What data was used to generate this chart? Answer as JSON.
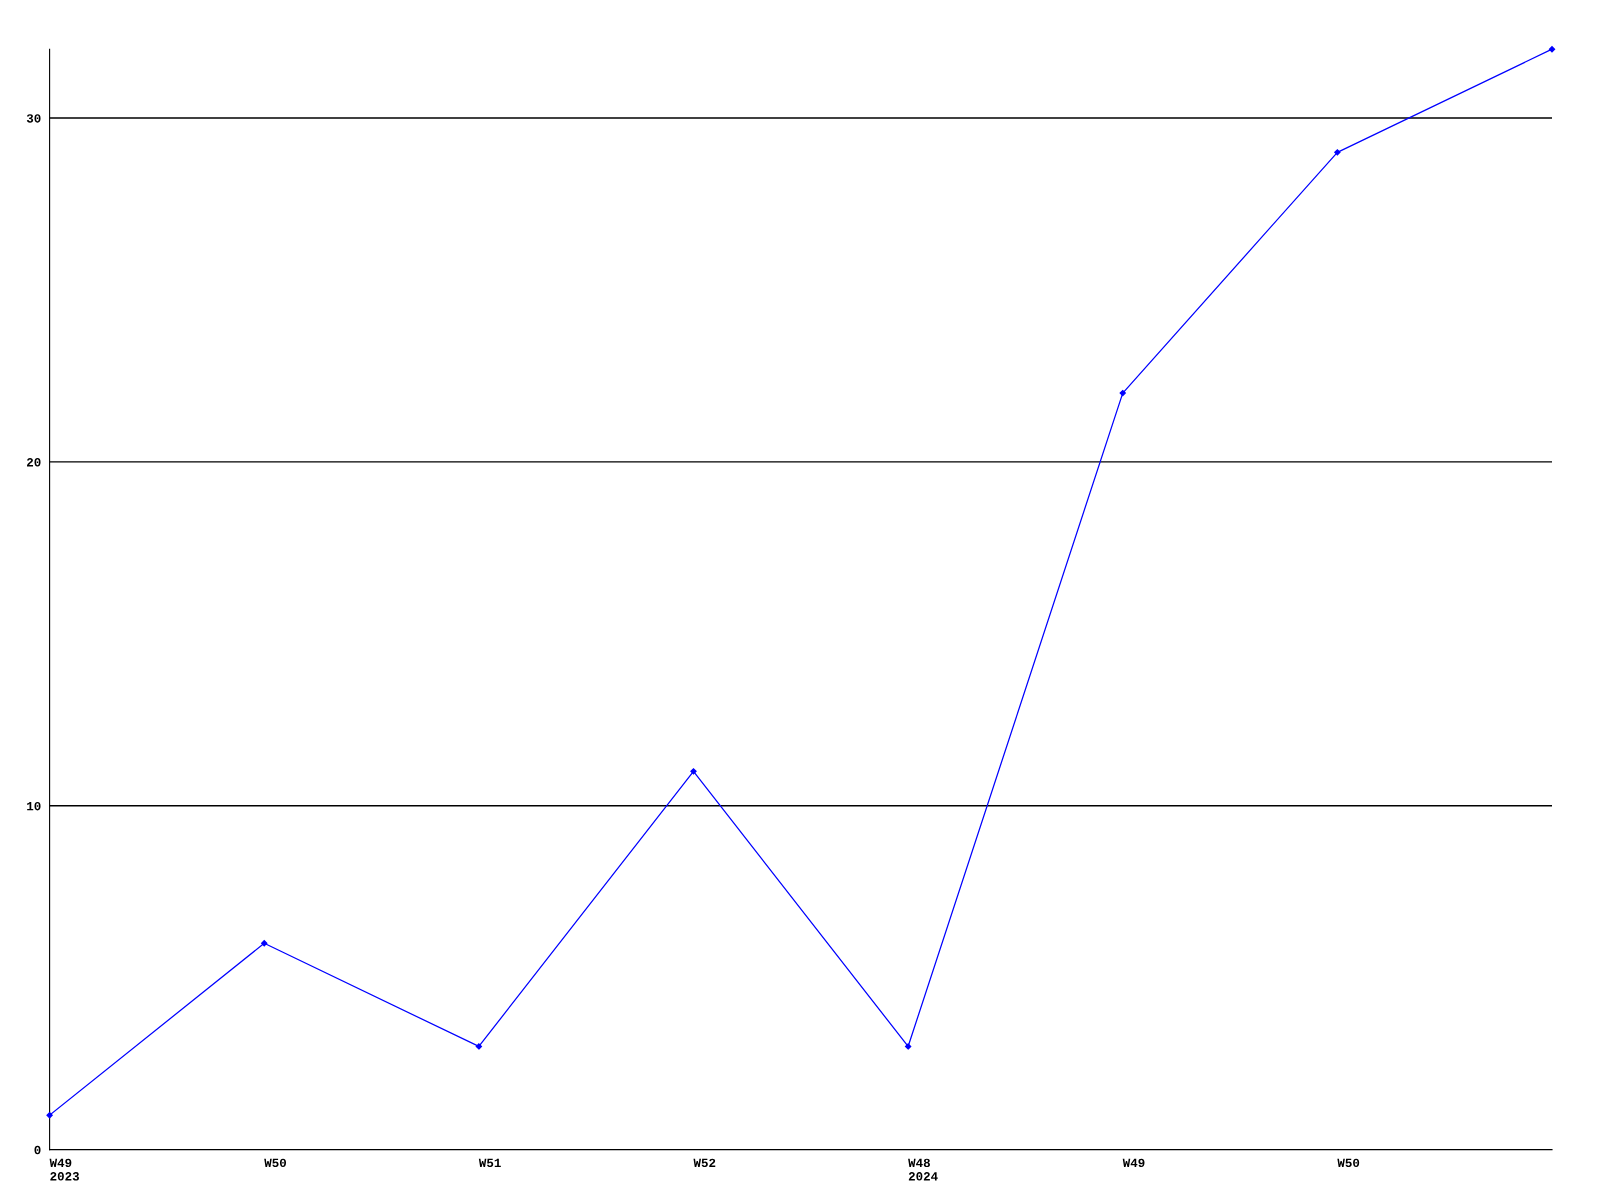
{
  "chart_data": {
    "type": "line",
    "categories": [
      "W49\n2023",
      "W50",
      "W51",
      "W52",
      "W48\n2024",
      "W49",
      "W50",
      null
    ],
    "series": [
      {
        "color": "#0000ff",
        "values": [
          1,
          6,
          3,
          11,
          3,
          22,
          29,
          32
        ]
      }
    ],
    "ylim": [
      0,
      32
    ],
    "yticks": [
      0,
      10,
      20,
      30
    ],
    "grid": "y",
    "marker": "diamond",
    "line_style": "solid"
  }
}
